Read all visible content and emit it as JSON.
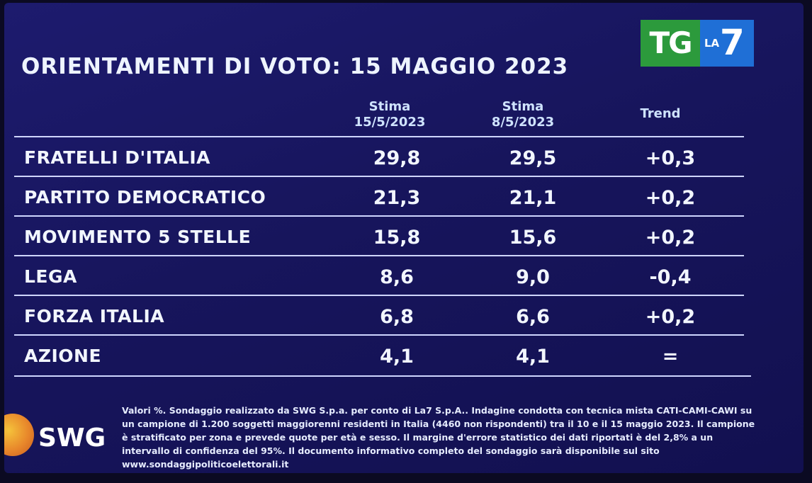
{
  "title": "ORIENTAMENTI DI VOTO: 15 MAGGIO 2023",
  "logo": {
    "tg": "TG",
    "la": "LA",
    "seven": "7"
  },
  "chart_data": {
    "type": "table",
    "columns": [
      {
        "line1": "Stima",
        "line2": "15/5/2023"
      },
      {
        "line1": "Stima",
        "line2": "8/5/2023"
      },
      {
        "line1": "Trend",
        "line2": ""
      }
    ],
    "rows": [
      {
        "party": "FRATELLI D'ITALIA",
        "stima_15": "29,8",
        "stima_8": "29,5",
        "trend": "+0,3"
      },
      {
        "party": "PARTITO DEMOCRATICO",
        "stima_15": "21,3",
        "stima_8": "21,1",
        "trend": "+0,2"
      },
      {
        "party": "MOVIMENTO 5 STELLE",
        "stima_15": "15,8",
        "stima_8": "15,6",
        "trend": "+0,2"
      },
      {
        "party": "LEGA",
        "stima_15": "8,6",
        "stima_8": "9,0",
        "trend": "-0,4"
      },
      {
        "party": "FORZA ITALIA",
        "stima_15": "6,8",
        "stima_8": "6,6",
        "trend": "+0,2"
      },
      {
        "party": "AZIONE",
        "stima_15": "4,1",
        "stima_8": "4,1",
        "trend": "="
      }
    ]
  },
  "swg_label": "SWG",
  "footnote": "Valori %. Sondaggio realizzato da SWG S.p.a. per conto di La7 S.p.A.. Indagine condotta con tecnica mista CATI-CAMI-CAWI su un campione di 1.200 soggetti maggiorenni residenti in Italia (4460 non rispondenti) tra il 10 e il 15 maggio 2023. Il campione è stratificato per zona e prevede quote per età e sesso. Il margine d'errore statistico dei dati riportati è del 2,8% a un intervallo di confidenza del 95%. Il documento informativo completo del sondaggio sarà disponibile sul sito www.sondaggipoliticoelettorali.it",
  "colors": {
    "background": "#1d1b6e",
    "text": "#f2f6ff",
    "tg_green": "#2c9a3c",
    "la7_blue": "#1f6fd6"
  }
}
